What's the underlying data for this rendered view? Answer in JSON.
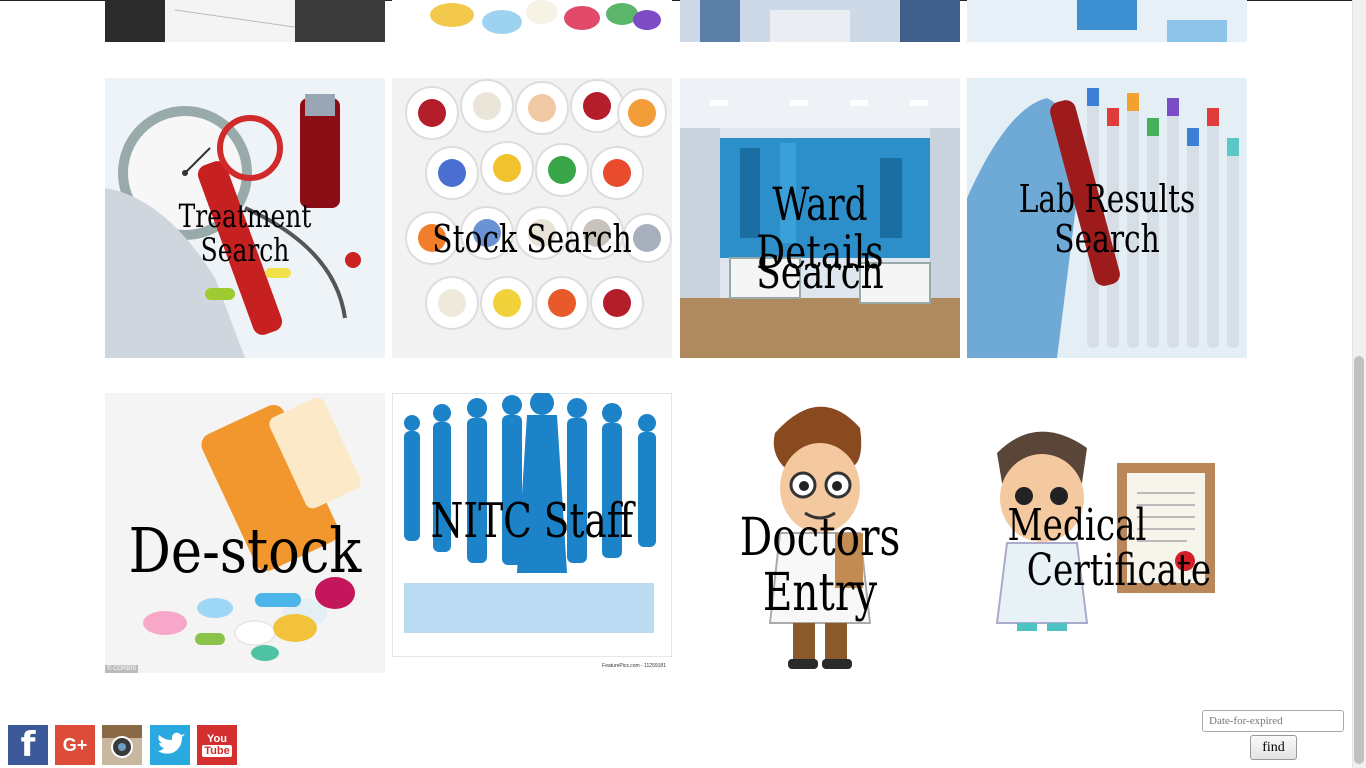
{
  "tiles_top_strip": [
    {
      "name": "records-strip"
    },
    {
      "name": "pills-strip"
    },
    {
      "name": "hospital-strip"
    },
    {
      "name": "lab-strip"
    }
  ],
  "tiles": {
    "treatment_search": "Treatment Search",
    "stock_search": "Stock Search",
    "ward_details_line1": "Ward Details",
    "ward_details_line2": "Search",
    "lab_results_search": "Lab Results Search",
    "de_stock": "De-stock",
    "nitc_staff": "NITC Staff",
    "doctors_entry": "Doctors Entry",
    "medical_line1": "Medical",
    "medical_line2": "Certificate",
    "corbis_credit": "© CORBIS",
    "featurepics_credit": "FeaturePics.com - 11259181"
  },
  "social": {
    "facebook": "f",
    "google_plus": "G+",
    "instagram": "",
    "twitter": "",
    "youtube_line1": "You",
    "youtube_line2": "Tube"
  },
  "expiry_form": {
    "date_placeholder": "Date-for-expired",
    "find_label": "find"
  },
  "colors": {
    "facebook": "#3b5998",
    "google_plus": "#dd4b39",
    "instagram": "#a07e5a",
    "twitter": "#1da1f2",
    "youtube": "#d32f2f"
  }
}
